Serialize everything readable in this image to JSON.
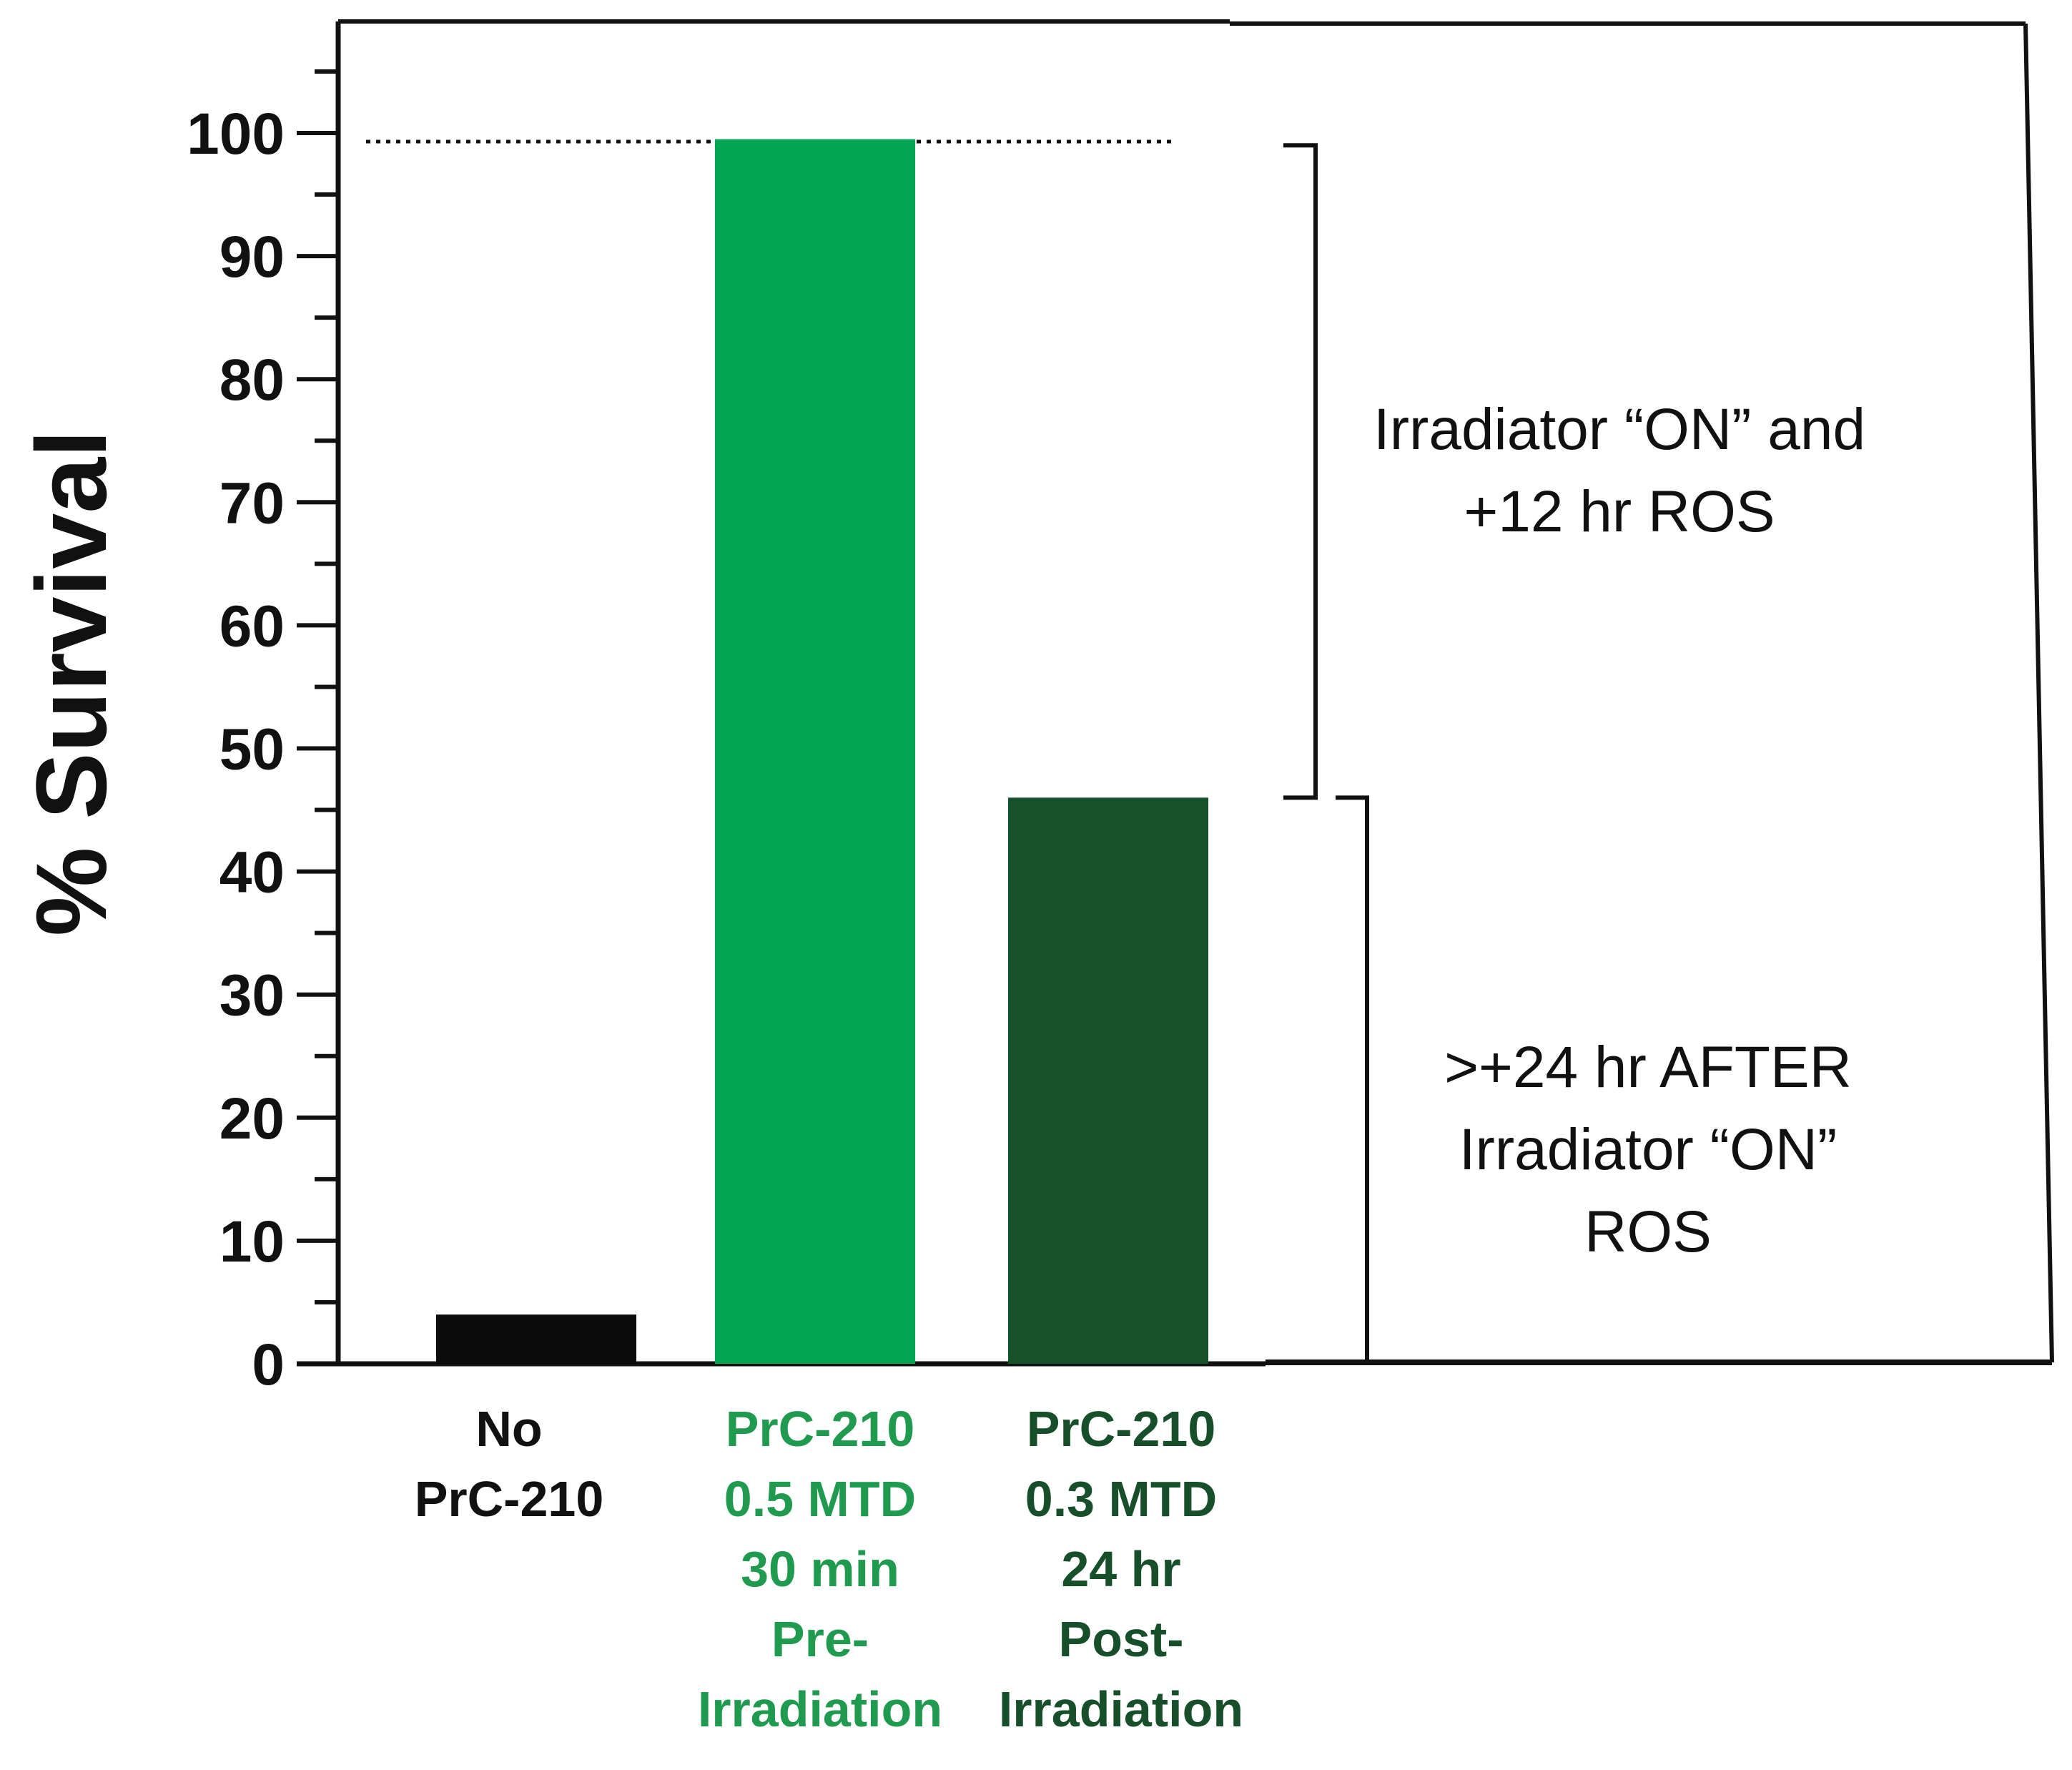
{
  "chart_data": {
    "type": "bar",
    "ylabel": "% Survival",
    "xlabel": "",
    "ylim": [
      0,
      100
    ],
    "yticks": [
      0,
      10,
      20,
      30,
      40,
      50,
      60,
      70,
      80,
      90,
      100
    ],
    "y_minor_step": 5,
    "reference_line": {
      "y": 100,
      "style": "dotted"
    },
    "categories": [
      {
        "lines": [
          "No",
          "PrC-210"
        ],
        "color": "#111111"
      },
      {
        "lines": [
          "PrC-210",
          "0.5 MTD",
          "30 min",
          "Pre-",
          "Irradiation"
        ],
        "color": "#1f9a4f"
      },
      {
        "lines": [
          "PrC-210",
          "0.3 MTD",
          "24 hr",
          "Post-",
          "Irradiation"
        ],
        "color": "#174f2b"
      }
    ],
    "values": [
      4,
      99.5,
      46
    ],
    "bar_colors": [
      "#0b0b0b",
      "#00a651",
      "#15522a"
    ],
    "annotations": [
      {
        "lines": [
          "Irradiator “ON” and",
          "+12 hr ROS"
        ],
        "range": [
          46,
          99
        ]
      },
      {
        "lines": [
          ">+24 hr AFTER",
          "Irradiator “ON”",
          "ROS"
        ],
        "range": [
          0,
          46
        ]
      }
    ],
    "grid": false
  }
}
